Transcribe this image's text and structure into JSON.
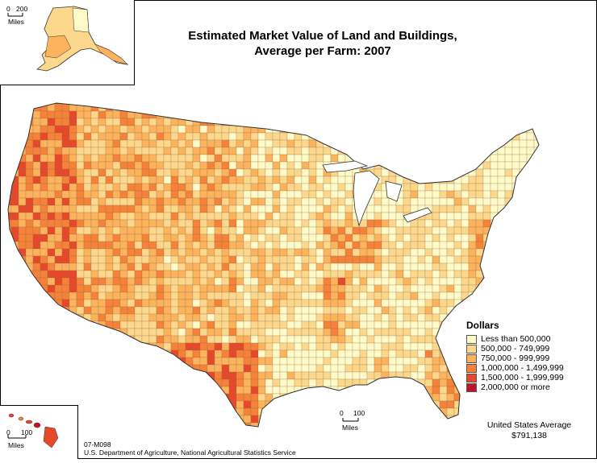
{
  "title": {
    "line1": "Estimated Market Value of Land and Buildings,",
    "line2": "Average per Farm:  2007"
  },
  "legend": {
    "title": "Dollars",
    "items": [
      {
        "label": "Less than 500,000",
        "color": "#fffbc8"
      },
      {
        "label": "500,000 - 749,999",
        "color": "#fdd88c"
      },
      {
        "label": "750,000 - 999,999",
        "color": "#fcb35c"
      },
      {
        "label": "1,000,000 - 1,499,999",
        "color": "#f6823a"
      },
      {
        "label": "1,500,000 - 1,999,999",
        "color": "#e8482a"
      },
      {
        "label": "2,000,000 or more",
        "color": "#c2112a"
      }
    ]
  },
  "average": {
    "label": "United States Average",
    "value": "$791,138"
  },
  "credit": {
    "code": "07-M098",
    "source": "U.S. Department of Agriculture, National Agricultural Statistics Service"
  },
  "scales": {
    "alaska": {
      "zero": "0",
      "dist": "200",
      "unit": "Miles"
    },
    "hawaii": {
      "zero": "0",
      "dist": "100",
      "unit": "Miles"
    },
    "main": {
      "zero": "0",
      "dist": "100",
      "unit": "Miles"
    }
  }
}
